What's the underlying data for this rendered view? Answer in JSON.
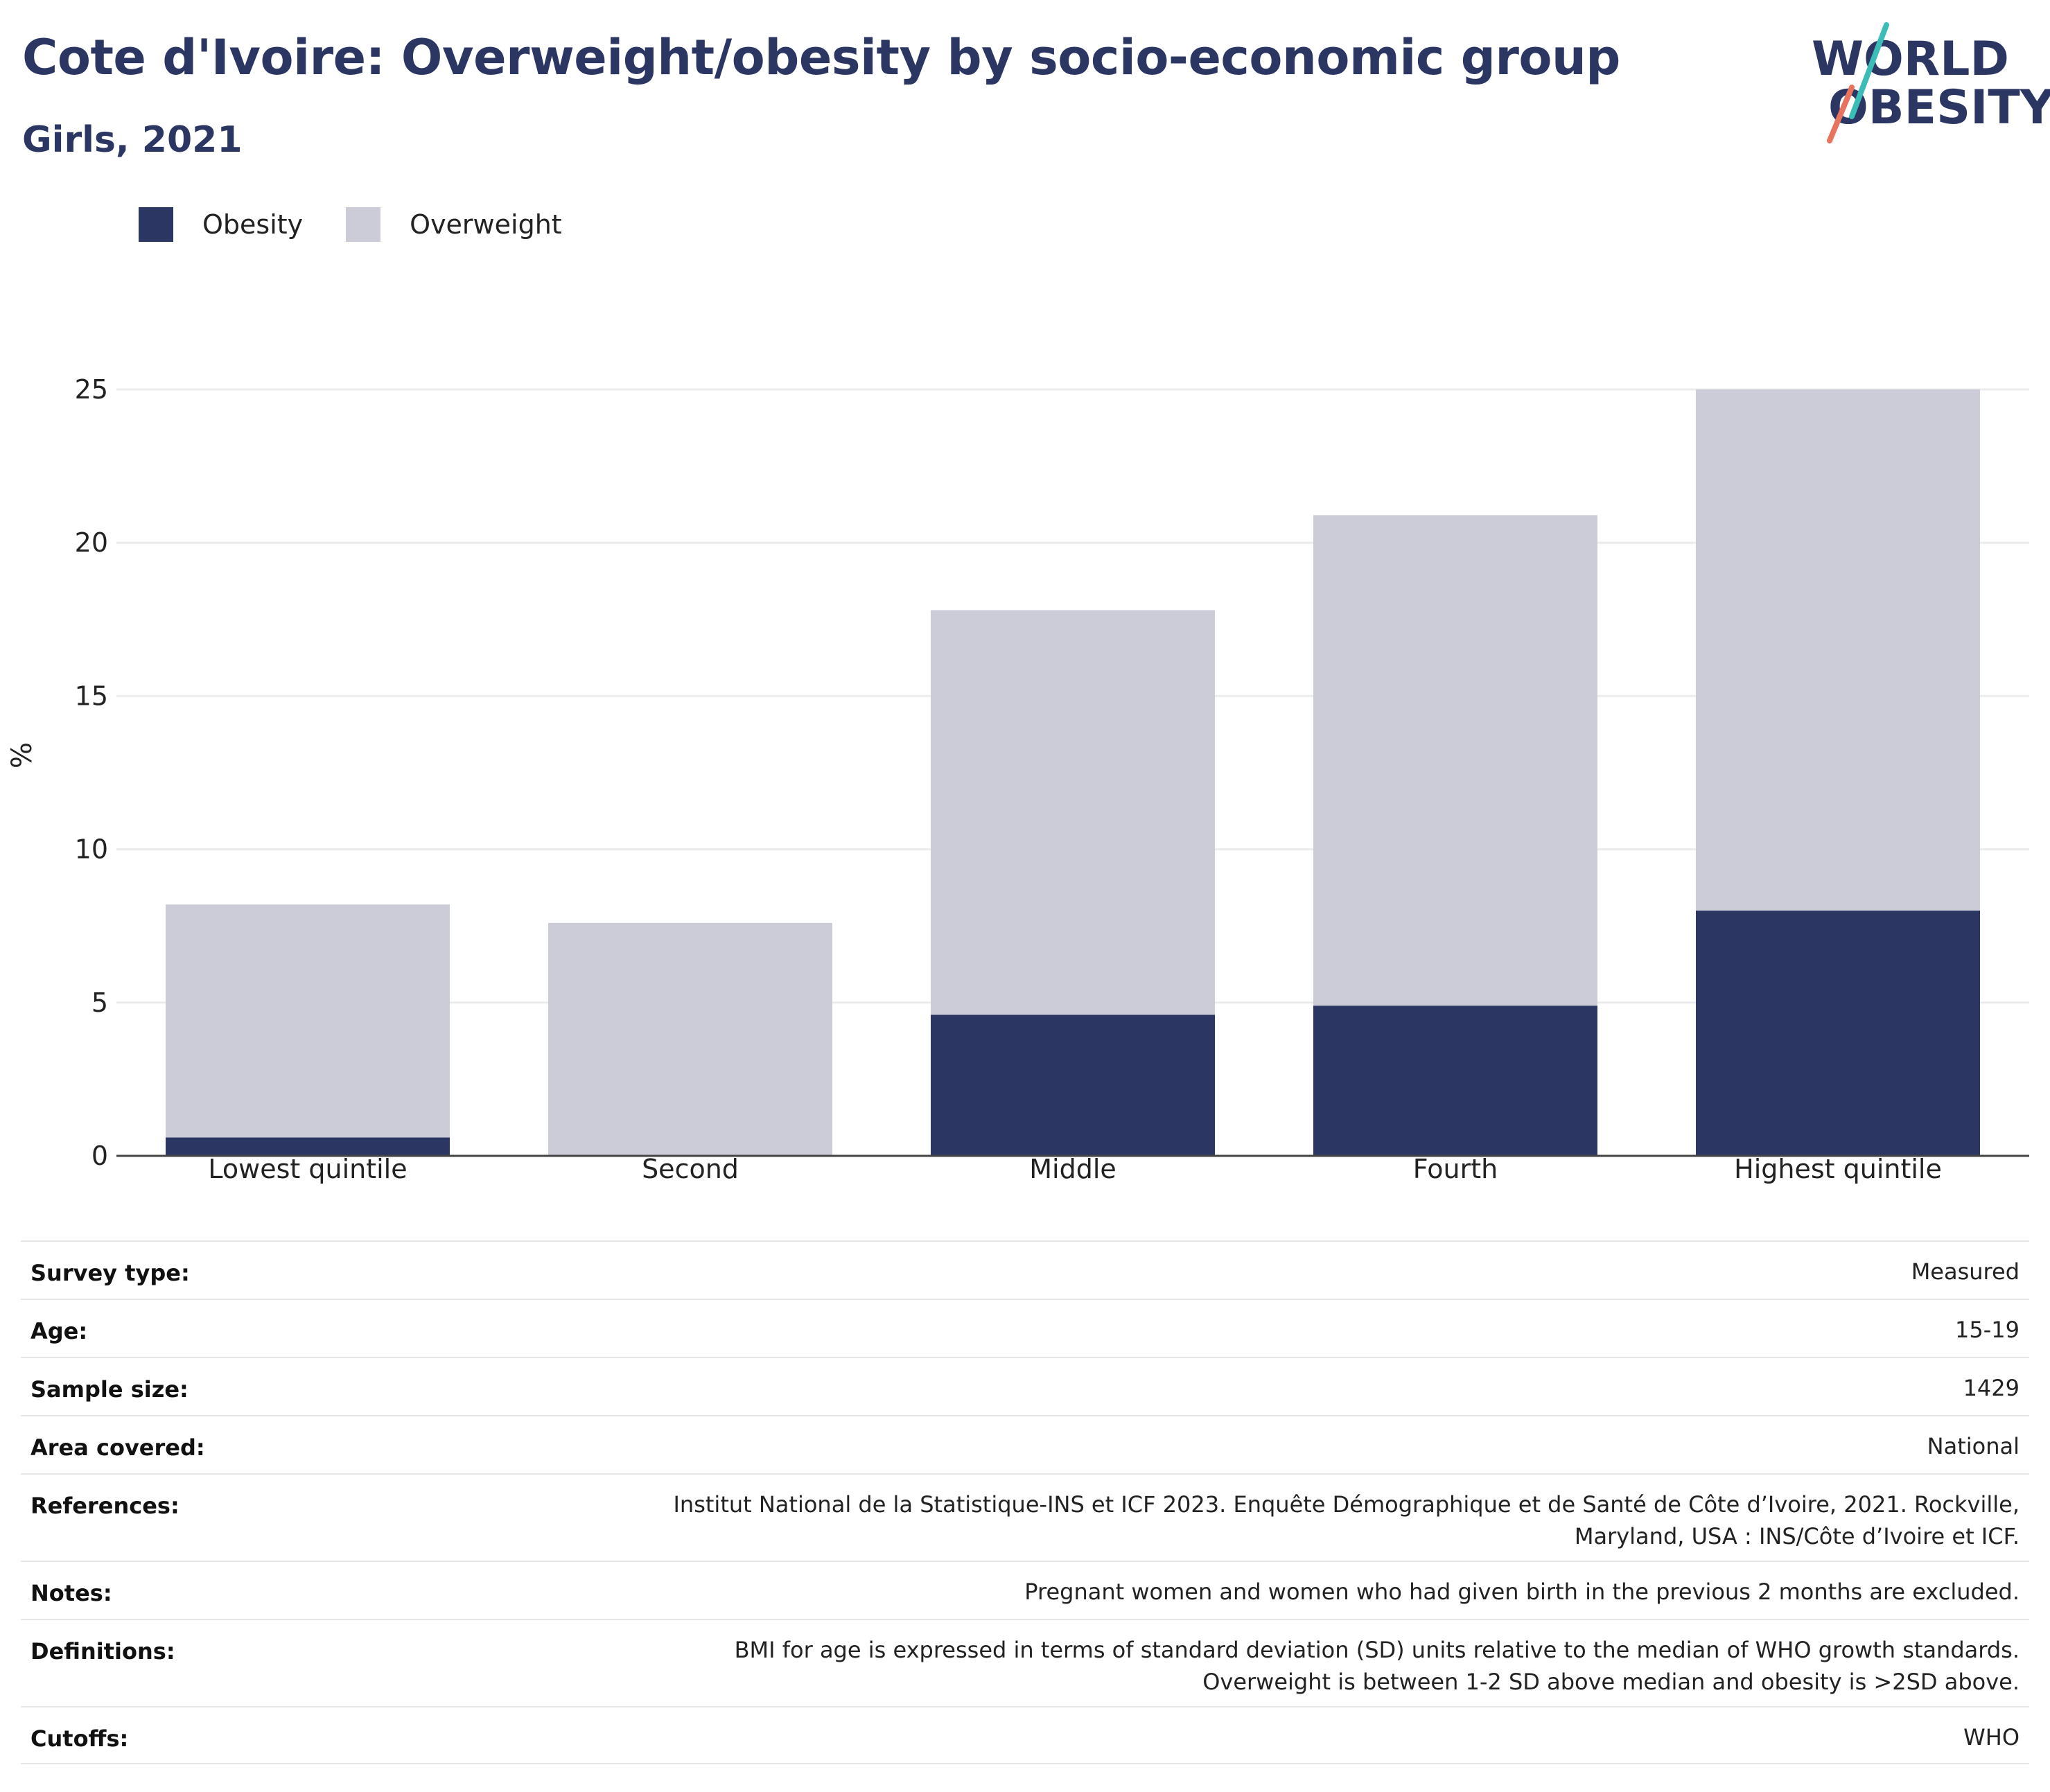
{
  "title": "Cote d'Ivoire: Overweight/obesity by socio-economic group",
  "subtitle": "Girls, 2021",
  "logo": {
    "line1": "WORLD",
    "line2": "OBESITY",
    "icon": "world-obesity-logo",
    "accent_teal": "#3bbcb7",
    "accent_coral": "#e8745f",
    "text_color": "#2b3663"
  },
  "colors": {
    "obesity": "#2b3663",
    "overweight": "#cbccd7",
    "grid": "#ebebeb",
    "axis": "#444444"
  },
  "legend": [
    {
      "label": "Obesity",
      "color": "#2b3663"
    },
    {
      "label": "Overweight",
      "color": "#cbccd7"
    }
  ],
  "chart_data": {
    "type": "bar",
    "stacked": true,
    "categories": [
      "Lowest quintile",
      "Second",
      "Middle",
      "Fourth",
      "Highest quintile"
    ],
    "series": [
      {
        "name": "Obesity",
        "values": [
          0.6,
          0,
          4.6,
          4.9,
          8.0
        ]
      },
      {
        "name": "Overweight",
        "values": [
          7.6,
          7.6,
          13.2,
          16.0,
          17.0
        ]
      }
    ],
    "title": "Cote d'Ivoire: Overweight/obesity by socio-economic group",
    "subtitle": "Girls, 2021",
    "xlabel": "",
    "ylabel": "%",
    "ylim": [
      0,
      25
    ],
    "yticks": [
      "0",
      "5",
      "10",
      "15",
      "20",
      "25"
    ],
    "grid": true,
    "legend_position": "top-left"
  },
  "meta": [
    {
      "key": "Survey type:",
      "value": "Measured"
    },
    {
      "key": "Age:",
      "value": "15-19"
    },
    {
      "key": "Sample size:",
      "value": "1429"
    },
    {
      "key": "Area covered:",
      "value": "National"
    },
    {
      "key": "References:",
      "value": "Institut National de la Statistique-INS et ICF 2023. Enquête Démographique et de Santé de Côte d’Ivoire, 2021. Rockville, Maryland, USA : INS/Côte d’Ivoire et ICF."
    },
    {
      "key": "Notes:",
      "value": "Pregnant women and women who had given birth in the previous 2 months are excluded."
    },
    {
      "key": "Definitions:",
      "value": "BMI for age is expressed in terms of standard deviation (SD) units relative to the median of WHO growth standards. Overweight is between 1-2 SD above median and obesity is >2SD above."
    },
    {
      "key": "Cutoffs:",
      "value": "WHO"
    }
  ]
}
